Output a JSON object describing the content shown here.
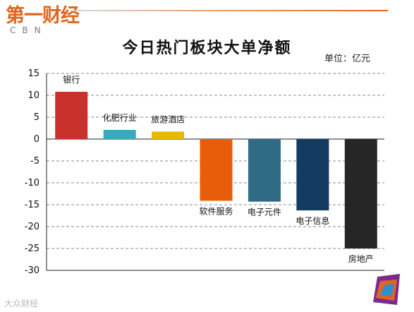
{
  "brand": {
    "name_cn": "第一财经",
    "name_en": "CBN"
  },
  "watermark": "大众财经",
  "chart_data": {
    "type": "bar",
    "title": "今日热门板块大单净额",
    "unit": "单位：亿元",
    "categories": [
      "银行",
      "化肥行业",
      "旅游酒店",
      "软件服务",
      "电子元件",
      "电子信息",
      "房地产"
    ],
    "values": [
      10.8,
      2.1,
      1.7,
      -14.1,
      -14.3,
      -16.3,
      -25.0
    ],
    "colors": [
      "#c8302b",
      "#3aa8bf",
      "#e8b900",
      "#e85d0a",
      "#2f6b85",
      "#133a60",
      "#262626"
    ],
    "yticks": [
      15,
      10,
      5,
      0,
      -5,
      -10,
      -15,
      -20,
      -25,
      -30
    ],
    "ylim": [
      -30,
      15
    ],
    "grid": true,
    "xlabel": "",
    "ylabel": ""
  }
}
